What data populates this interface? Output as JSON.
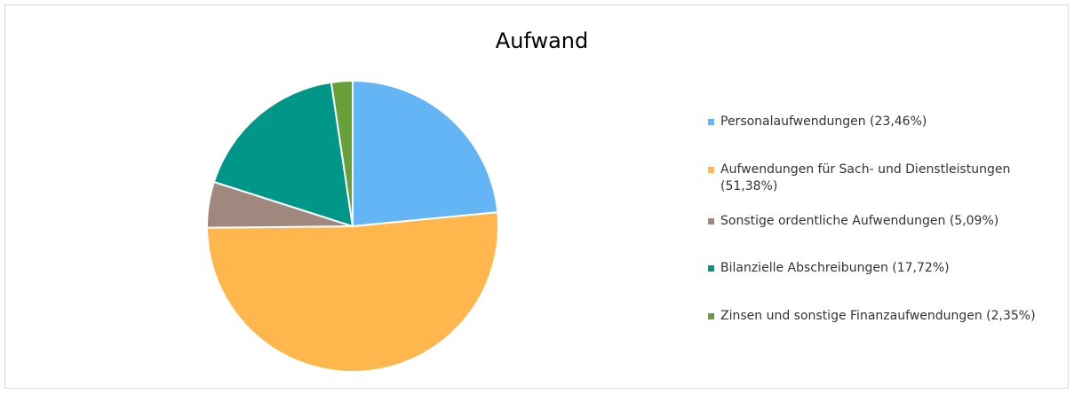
{
  "chart_data": {
    "type": "pie",
    "title": "Aufwand",
    "categories": [
      "Personalaufwendungen",
      "Aufwendungen für Sach- und Dienstleistungen",
      "Sonstige ordentliche Aufwendungen",
      "Bilanzielle Abschreibungen",
      "Zinsen und sonstige Finanzaufwendungen"
    ],
    "values": [
      23.46,
      51.38,
      5.09,
      17.72,
      2.35
    ],
    "value_labels": [
      "(23,46%)",
      "(51,38%)",
      "(5,09%)",
      "(17,72%)",
      "(2,35%)"
    ],
    "colors": [
      "#64b5f6",
      "#ffb74d",
      "#a1887f",
      "#009688",
      "#689f38"
    ],
    "legend": "right"
  }
}
